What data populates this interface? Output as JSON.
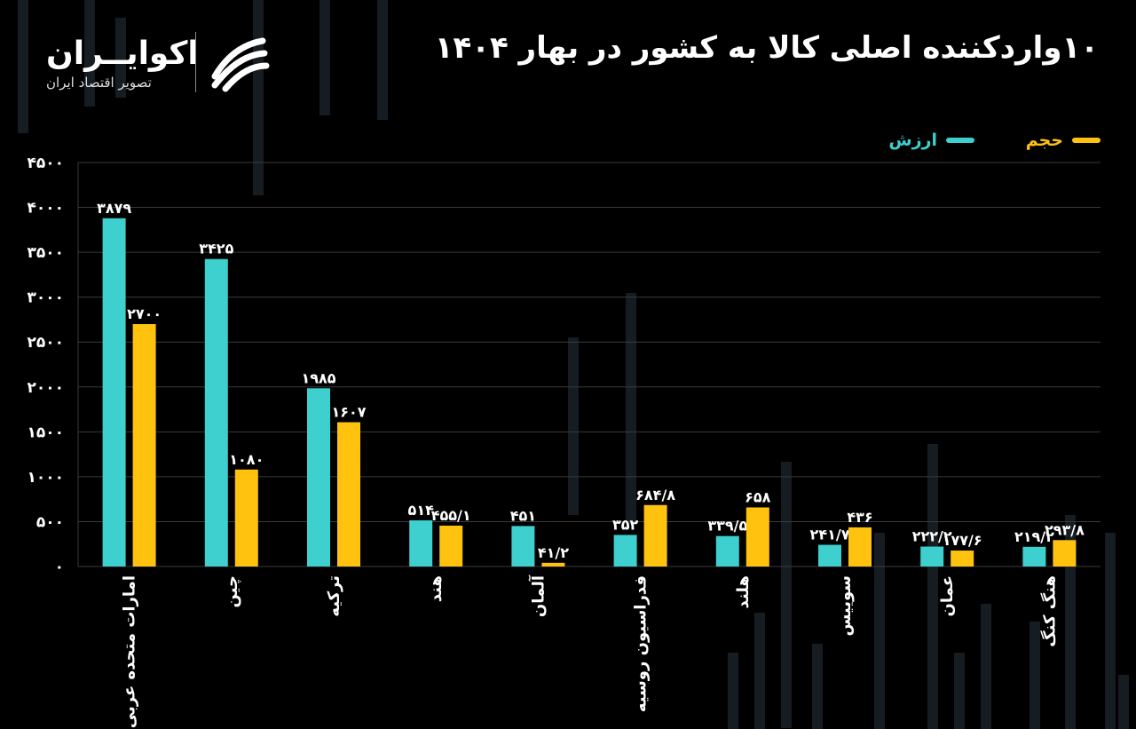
{
  "title": "۱۰واردکننده اصلی کالا به کشور در بهار ۱۴۰۴",
  "brand": {
    "name": "اکوایــران",
    "tagline": "تصویر اقتصاد ایران",
    "logo": "ecoiran-logo-icon"
  },
  "colors": {
    "value": "#3ecfcf",
    "volume": "#ffc20e",
    "background": "#000000",
    "grid": "#3a3a3a"
  },
  "legend": {
    "value_label": "ارزش",
    "volume_label": "حجم"
  },
  "chart_data": {
    "type": "bar",
    "title": "۱۰واردکننده اصلی کالا به کشور در بهار ۱۴۰۴",
    "ylim": [
      0,
      4500
    ],
    "yticks": [
      "۰",
      "۵۰۰",
      "۱۰۰۰",
      "۱۵۰۰",
      "۲۰۰۰",
      "۲۵۰۰",
      "۳۰۰۰",
      "۳۵۰۰",
      "۴۰۰۰",
      "۴۵۰۰"
    ],
    "ytick_values": [
      0,
      500,
      1000,
      1500,
      2000,
      2500,
      3000,
      3500,
      4000,
      4500
    ],
    "categories": [
      "امارات متحده عربی",
      "چین",
      "ترکیه",
      "هند",
      "آلمان",
      "فدراسیون روسیه",
      "هلند",
      "سوییس",
      "عمان",
      "هنگ کنگ"
    ],
    "series": [
      {
        "name": "ارزش",
        "color": "#3ecfcf",
        "values": [
          3879,
          3425,
          1985,
          514,
          451,
          352,
          339.5,
          241.7,
          222.2,
          219.2
        ],
        "labels": [
          "۳۸۷۹",
          "۳۴۲۵",
          "۱۹۸۵",
          "۵۱۴",
          "۴۵۱",
          "۳۵۲",
          "۳۳۹/۵",
          "۲۴۱/۷",
          "۲۲۲/۲",
          "۲۱۹/۲"
        ]
      },
      {
        "name": "حجم",
        "color": "#ffc20e",
        "values": [
          2700,
          1080,
          1607,
          455.1,
          41.2,
          684.8,
          658,
          436,
          177.6,
          293.8
        ],
        "labels": [
          "۲۷۰۰",
          "۱۰۸۰",
          "۱۶۰۷",
          "۴۵۵/۱",
          "۴۱/۲",
          "۶۸۴/۸",
          "۶۵۸",
          "۴۳۶",
          "۱۷۷/۶",
          "۲۹۳/۸"
        ]
      }
    ],
    "grid": true,
    "legend_position": "top-right"
  }
}
